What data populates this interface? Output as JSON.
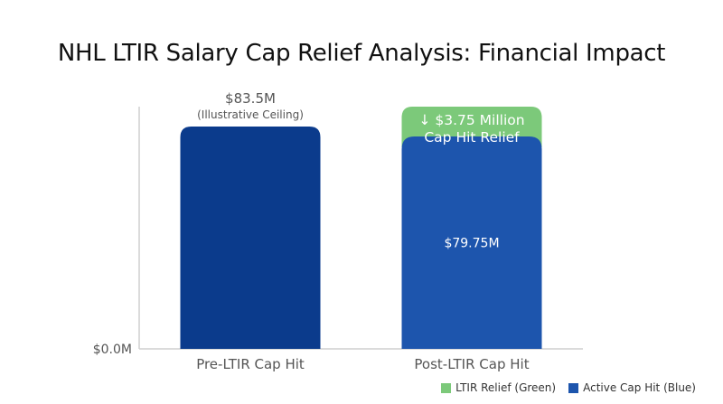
{
  "chart_data": {
    "type": "bar",
    "title": "NHL LTIR Salary Cap Relief Analysis: Financial Impact",
    "categories": [
      "Pre-LTIR Cap Hit",
      "Post-LTIR Cap Hit"
    ],
    "series": [
      {
        "name": "Active Cap Hit (Blue)",
        "values": [
          83.5,
          79.75
        ]
      },
      {
        "name": "LTIR Relief (Green)",
        "values": [
          0,
          3.75
        ]
      }
    ],
    "stacked": true,
    "ylim": [
      0,
      83.5
    ],
    "y_tick_labels": [
      "$0.0M"
    ],
    "data_labels": {
      "bar1_value": "$83.5M",
      "bar1_note": "(Illustrative Ceiling)",
      "bar2_value": "$79.75M",
      "relief_line1": "↓ $3.75 Million",
      "relief_line2": "Cap Hit Relief"
    },
    "legend_position": "bottom-right",
    "grid": false,
    "colors": {
      "pre_bar": "#0b3b8c",
      "active": "#1d55ad",
      "relief": "#7cc97a",
      "axis": "#cfcfcf"
    }
  }
}
